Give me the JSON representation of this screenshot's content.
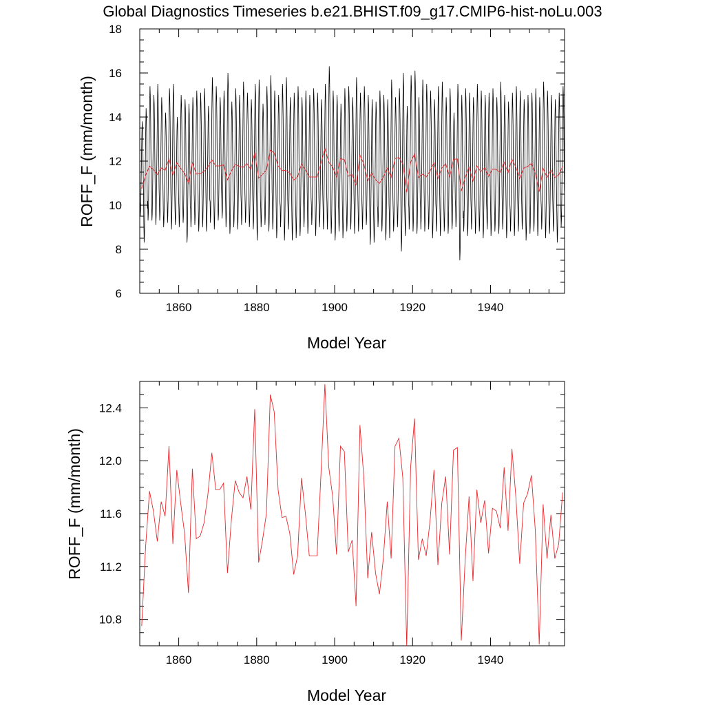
{
  "title": "Global Diagnostics Timeseries b.e21.BHIST.f09_g17.CMIP6-hist-noLu.003",
  "colors": {
    "monthly": "#000000",
    "annual": "#e8282d",
    "axis": "#000000"
  },
  "chart_data": [
    {
      "type": "line",
      "xlabel": "Model Year",
      "ylabel": "ROFF_F (mm/month)",
      "xlim": [
        1850,
        1959
      ],
      "ylim": [
        6,
        18
      ],
      "x_ticks": [
        1860,
        1880,
        1900,
        1920,
        1940
      ],
      "y_ticks": [
        6,
        8,
        10,
        12,
        14,
        16,
        18
      ],
      "y_tick_labels": [
        "6",
        "8",
        "10",
        "12",
        "14",
        "16",
        "18"
      ],
      "monthly_series": {
        "start_year": 1850,
        "seasonal_cycle": [
          9.8,
          9.0,
          9.3,
          10.2,
          11.4,
          12.6,
          13.8,
          14.5,
          14.1,
          13.2,
          11.6,
          10.4
        ],
        "yearly_peak": [
          13.8,
          14.4,
          15.4,
          15.0,
          15.5,
          14.9,
          14.2,
          15.3,
          15.5,
          14.0,
          15.0,
          14.8,
          14.6,
          14.9,
          15.2,
          15.1,
          15.3,
          14.5,
          15.8,
          15.4,
          14.9,
          15.2,
          16.0,
          14.7,
          15.3,
          15.0,
          15.6,
          15.1,
          14.8,
          15.5,
          15.7,
          14.6,
          15.4,
          15.9,
          15.2,
          15.0,
          15.5,
          15.8,
          14.9,
          15.1,
          15.4,
          14.9,
          15.2,
          15.0,
          15.3,
          15.1,
          14.8,
          15.5,
          16.3,
          15.2,
          15.0,
          14.6,
          15.3,
          15.4,
          14.9,
          15.8,
          15.1,
          15.4,
          15.0,
          14.8,
          14.7,
          15.2,
          15.0,
          14.8,
          15.7,
          14.9,
          15.3,
          16.0,
          14.5,
          15.9,
          16.1,
          14.9,
          15.7,
          15.5,
          15.2,
          14.8,
          15.4,
          15.6,
          14.9,
          15.3,
          14.2,
          15.5,
          15.0,
          15.3,
          15.1,
          14.9,
          15.5,
          15.2,
          15.0,
          15.1,
          15.3,
          14.9,
          15.6,
          15.0,
          14.7,
          15.1,
          15.4,
          15.2,
          14.8,
          15.0,
          15.1,
          15.3,
          14.9,
          15.6,
          15.2,
          15.0,
          14.8,
          15.1,
          15.4
        ],
        "yearly_trough": [
          9.5,
          8.3,
          9.3,
          9.3,
          9.1,
          9.3,
          9.0,
          9.2,
          8.9,
          9.1,
          9.0,
          9.2,
          8.3,
          9.0,
          9.1,
          8.8,
          9.0,
          8.8,
          9.2,
          8.9,
          9.3,
          9.4,
          9.0,
          8.7,
          9.0,
          8.9,
          9.1,
          9.2,
          9.0,
          8.9,
          8.4,
          9.0,
          9.1,
          8.8,
          8.9,
          8.5,
          9.0,
          8.4,
          8.9,
          8.4,
          8.5,
          8.6,
          9.0,
          8.7,
          9.1,
          8.6,
          9.0,
          8.9,
          8.9,
          8.7,
          8.4,
          8.8,
          8.5,
          8.8,
          8.9,
          8.7,
          8.8,
          8.9,
          9.1,
          8.2,
          8.3,
          9.0,
          8.8,
          8.4,
          8.5,
          8.8,
          9.0,
          7.9,
          8.6,
          8.9,
          8.8,
          8.7,
          8.9,
          8.8,
          8.9,
          8.5,
          8.8,
          8.6,
          8.8,
          8.7,
          8.9,
          9.0,
          7.5,
          8.8,
          8.6,
          8.9,
          8.7,
          8.8,
          8.5,
          8.9,
          8.6,
          8.8,
          8.7,
          8.9,
          8.5,
          8.8,
          8.6,
          8.8,
          8.9,
          8.4,
          8.7,
          8.8,
          8.6,
          8.9,
          8.5,
          8.7,
          8.8,
          8.3,
          9.0
        ]
      },
      "annual_series_ref": "annual_mean"
    },
    {
      "type": "line",
      "xlabel": "Model Year",
      "ylabel": "ROFF_F (mm/month)",
      "xlim": [
        1850,
        1959
      ],
      "ylim": [
        10.6,
        12.6
      ],
      "x_ticks": [
        1860,
        1880,
        1900,
        1920,
        1940
      ],
      "y_ticks": [
        10.8,
        11.2,
        11.6,
        12.0,
        12.4
      ],
      "y_tick_labels": [
        "10.8",
        "11.2",
        "11.6",
        "12.0",
        "12.4"
      ],
      "annual_series_ref": "annual_mean"
    }
  ],
  "annual_mean": {
    "x": [
      1850.5,
      1851.5,
      1852.5,
      1853.5,
      1854.5,
      1855.5,
      1856.5,
      1857.5,
      1858.5,
      1859.5,
      1860.5,
      1861.5,
      1862.5,
      1863.5,
      1864.5,
      1865.5,
      1866.5,
      1867.5,
      1868.5,
      1869.5,
      1870.5,
      1871.5,
      1872.5,
      1873.5,
      1874.5,
      1875.5,
      1876.5,
      1877.5,
      1878.5,
      1879.5,
      1880.5,
      1881.5,
      1882.5,
      1883.5,
      1884.5,
      1885.5,
      1886.5,
      1887.5,
      1888.5,
      1889.5,
      1890.5,
      1891.5,
      1892.5,
      1893.5,
      1894.5,
      1895.5,
      1896.5,
      1897.5,
      1898.5,
      1899.5,
      1900.5,
      1901.5,
      1902.5,
      1903.5,
      1904.5,
      1905.5,
      1906.5,
      1907.5,
      1908.5,
      1909.5,
      1910.5,
      1911.5,
      1912.5,
      1913.5,
      1914.5,
      1915.5,
      1916.5,
      1917.5,
      1918.5,
      1919.5,
      1920.5,
      1921.5,
      1922.5,
      1923.5,
      1924.5,
      1925.5,
      1926.5,
      1927.5,
      1928.5,
      1929.5,
      1930.5,
      1931.5,
      1932.5,
      1933.5,
      1934.5,
      1935.5,
      1936.5,
      1937.5,
      1938.5,
      1939.5,
      1940.5,
      1941.5,
      1942.5,
      1943.5,
      1944.5,
      1945.5,
      1946.5,
      1947.5,
      1948.5,
      1949.5,
      1950.5,
      1951.5,
      1952.5,
      1953.5,
      1954.5,
      1955.5,
      1956.5,
      1957.5,
      1958.5
    ],
    "y": [
      10.75,
      11.35,
      11.77,
      11.62,
      11.39,
      11.69,
      11.58,
      12.11,
      11.37,
      11.93,
      11.68,
      11.45,
      11.0,
      11.94,
      11.41,
      11.43,
      11.53,
      11.75,
      12.06,
      11.78,
      11.78,
      11.83,
      11.15,
      11.55,
      11.85,
      11.76,
      11.72,
      11.88,
      11.63,
      12.39,
      11.23,
      11.4,
      11.6,
      12.5,
      12.37,
      11.78,
      11.57,
      11.58,
      11.45,
      11.14,
      11.28,
      11.87,
      11.6,
      11.28,
      11.28,
      11.28,
      11.9,
      12.58,
      11.95,
      11.73,
      11.29,
      12.11,
      12.07,
      11.31,
      11.4,
      10.9,
      12.27,
      11.87,
      11.11,
      11.46,
      11.15,
      10.99,
      11.26,
      11.69,
      11.26,
      12.11,
      12.17,
      11.87,
      10.59,
      11.95,
      12.32,
      11.25,
      11.41,
      11.28,
      11.55,
      11.93,
      11.21,
      11.68,
      11.88,
      11.29,
      12.08,
      12.1,
      10.64,
      11.25,
      11.73,
      11.09,
      11.78,
      11.53,
      11.7,
      11.3,
      11.64,
      11.62,
      11.49,
      11.95,
      11.47,
      12.09,
      11.73,
      11.22,
      11.68,
      11.75,
      11.89,
      11.47,
      10.61,
      11.67,
      11.26,
      11.59,
      11.26,
      11.37,
      11.76
    ]
  }
}
